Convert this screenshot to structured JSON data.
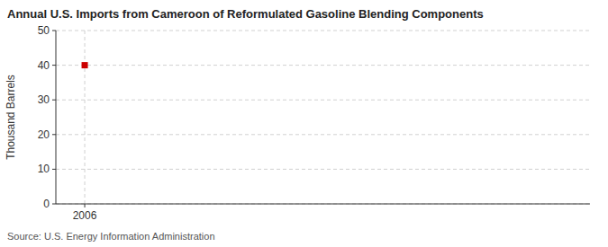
{
  "chart_data": {
    "type": "scatter",
    "title": "Annual U.S. Imports from Cameroon of Reformulated Gasoline Blending Components",
    "y_label": "Thousand Barrels",
    "source": "Source: U.S. Energy Information Administration",
    "x": [
      2006
    ],
    "values": [
      40
    ],
    "color": "#cc0000",
    "marker": "square",
    "xlim": [
      2005.4,
      2016.5
    ],
    "ylim": [
      0,
      50
    ],
    "xticks": [
      2006
    ],
    "yticks": [
      0,
      10,
      20,
      30,
      40,
      50
    ],
    "grid": true
  }
}
